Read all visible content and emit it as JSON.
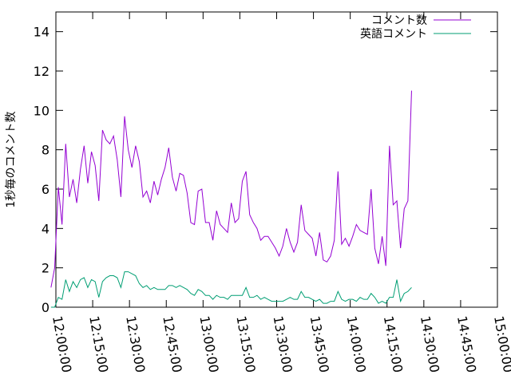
{
  "chart_data": {
    "type": "line",
    "title": "",
    "xlabel": "",
    "ylabel": "1秒毎のコメント数",
    "ylim": [
      0,
      15
    ],
    "yticks": [
      0,
      2,
      4,
      6,
      8,
      10,
      12,
      14
    ],
    "xlim": [
      "12:00:00",
      "15:00:00"
    ],
    "xticks": [
      "12:00:00",
      "12:15:00",
      "12:30:00",
      "12:45:00",
      "13:00:00",
      "13:15:00",
      "13:30:00",
      "13:45:00",
      "14:00:00",
      "14:15:00",
      "14:30:00",
      "14:45:00",
      "15:00:00"
    ],
    "grid": false,
    "legend_position": "top-right",
    "x_start": "11:58:00",
    "x_step_minutes": 1.5,
    "series": [
      {
        "name": "コメント数",
        "color": "#9400d3",
        "values": [
          1.0,
          2.0,
          6.1,
          4.2,
          8.3,
          5.6,
          6.5,
          5.3,
          7.0,
          8.2,
          6.3,
          7.9,
          7.2,
          5.4,
          9.0,
          8.5,
          8.3,
          8.7,
          7.5,
          5.6,
          9.7,
          8.0,
          7.1,
          8.2,
          7.4,
          5.6,
          5.9,
          5.3,
          6.4,
          5.7,
          6.5,
          7.1,
          8.1,
          6.6,
          5.9,
          6.8,
          6.7,
          5.8,
          4.3,
          4.2,
          5.9,
          6.0,
          4.3,
          4.3,
          3.4,
          4.9,
          4.2,
          4.0,
          3.8,
          5.3,
          4.3,
          4.5,
          6.4,
          6.9,
          4.7,
          4.3,
          4.0,
          3.4,
          3.6,
          3.6,
          3.3,
          3.0,
          2.6,
          3.1,
          4.0,
          3.3,
          2.8,
          3.3,
          5.2,
          3.9,
          3.7,
          3.5,
          2.6,
          3.8,
          2.4,
          2.3,
          2.6,
          3.4,
          6.9,
          3.2,
          3.5,
          3.1,
          3.6,
          4.2,
          3.9,
          3.8,
          3.7,
          6.0,
          3.0,
          2.2,
          3.6,
          2.1,
          8.2,
          5.2,
          5.4,
          3.0,
          5.0,
          5.4,
          11.0
        ]
      },
      {
        "name": "英語コメント",
        "color": "#009e73",
        "values": [
          0.0,
          0.0,
          0.5,
          0.4,
          1.4,
          0.8,
          1.3,
          1.0,
          1.4,
          1.5,
          1.0,
          1.4,
          1.3,
          0.5,
          1.3,
          1.5,
          1.6,
          1.6,
          1.5,
          1.0,
          1.8,
          1.8,
          1.7,
          1.6,
          1.2,
          1.0,
          1.1,
          0.9,
          1.0,
          0.9,
          0.9,
          0.9,
          1.1,
          1.1,
          1.0,
          1.1,
          1.0,
          0.9,
          0.7,
          0.6,
          0.9,
          0.8,
          0.6,
          0.6,
          0.4,
          0.6,
          0.5,
          0.5,
          0.4,
          0.6,
          0.6,
          0.6,
          0.6,
          1.0,
          0.5,
          0.5,
          0.6,
          0.4,
          0.5,
          0.4,
          0.3,
          0.3,
          0.3,
          0.3,
          0.4,
          0.5,
          0.4,
          0.4,
          0.8,
          0.5,
          0.5,
          0.4,
          0.3,
          0.4,
          0.2,
          0.2,
          0.3,
          0.3,
          0.8,
          0.4,
          0.3,
          0.4,
          0.4,
          0.3,
          0.5,
          0.4,
          0.4,
          0.7,
          0.5,
          0.2,
          0.3,
          0.2,
          0.5,
          0.5,
          1.4,
          0.3,
          0.7,
          0.8,
          1.0
        ]
      }
    ]
  }
}
